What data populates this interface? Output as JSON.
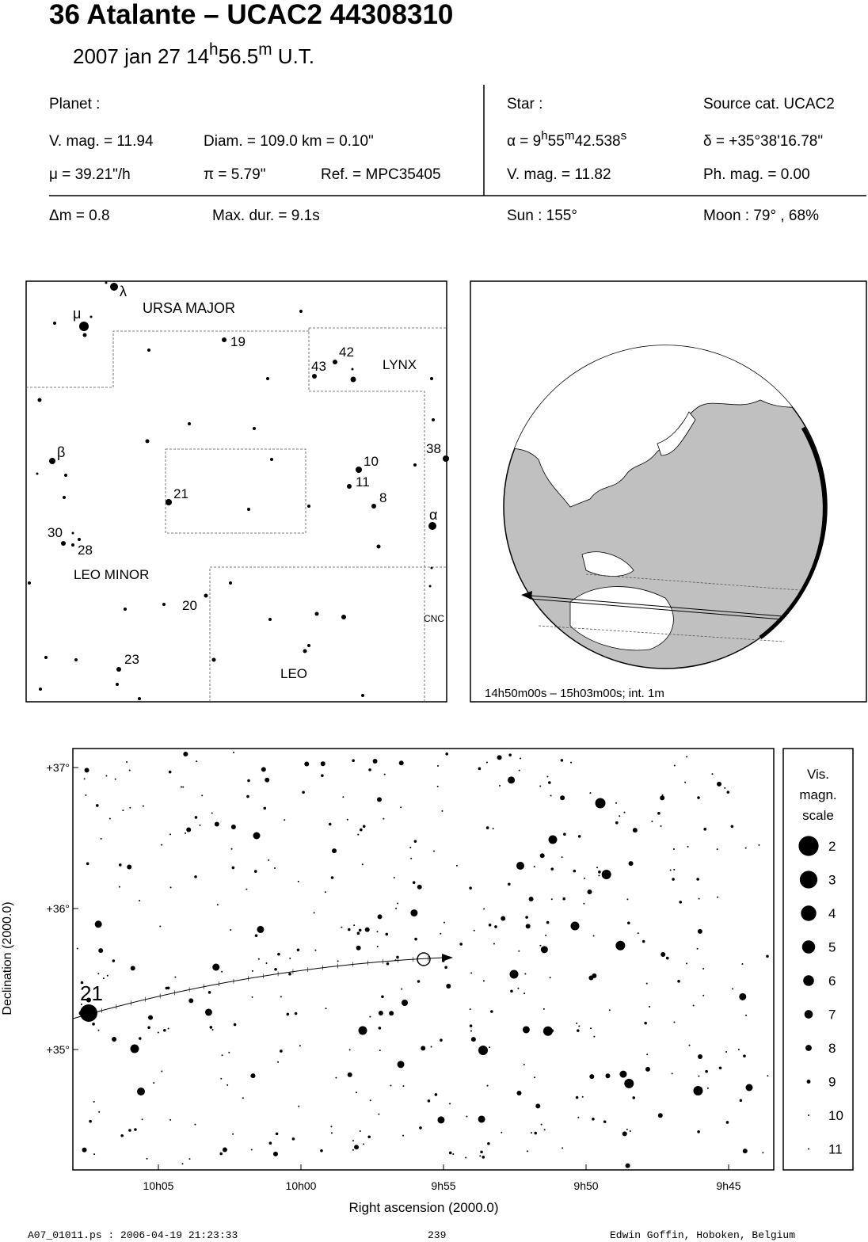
{
  "header": {
    "title": "36 Atalante  –  UCAC2 44308310",
    "subtitle": [
      {
        "t": "2007 jan 27  14"
      },
      {
        "t": "h",
        "sup": true
      },
      {
        "t": "56.5"
      },
      {
        "t": "m",
        "sup": true
      },
      {
        "t": " U.T."
      }
    ]
  },
  "planet": {
    "label": "Planet :",
    "vmag": "V. mag. = 11.94",
    "diam": "Diam. = 109.0 km = 0.10\"",
    "mu": "μ =  39.21\"/h",
    "pi": "π =  5.79\"",
    "ref": "Ref. = MPC35405"
  },
  "star": {
    "label": "Star :",
    "source": "Source cat.  UCAC2",
    "alpha": [
      {
        "t": "α =  9"
      },
      {
        "t": "h",
        "sup": true
      },
      {
        "t": "55"
      },
      {
        "t": "m",
        "sup": true
      },
      {
        "t": "42.538"
      },
      {
        "t": "s",
        "sup": true
      }
    ],
    "delta": "δ = +35°38'16.78\"",
    "vmag": "V. mag. = 11.82",
    "phmag": "Ph. mag. =  0.00"
  },
  "event": {
    "dm": "Δm = 0.8",
    "maxdur": "Max. dur. = 9.1s",
    "sun": "Sun : 155°",
    "moon": "Moon :  79° , 68%"
  },
  "finder": {
    "labels": [
      "λ",
      "μ",
      "URSA MAJOR",
      "19",
      "42",
      "43",
      "LYNX",
      "β",
      "38",
      "10",
      "11",
      "21",
      "8",
      "α",
      "30",
      "28",
      "LEO MINOR",
      "20",
      "CNC",
      "23",
      "LEO"
    ]
  },
  "globe": {
    "caption": "14h50m00s – 15h03m00s; int.  1m"
  },
  "starchart": {
    "ylabel": "Declination (2000.0)",
    "xlabel": "Right ascension (2000.0)",
    "yticks": [
      "+37°",
      "+36°",
      "+35°"
    ],
    "xticks": [
      "10h05",
      "10h00",
      "9h55",
      "9h50",
      "9h45"
    ],
    "star_label": "21"
  },
  "scale": {
    "title": [
      "Vis.",
      "magn.",
      "scale"
    ],
    "magnitudes": [
      2,
      3,
      4,
      5,
      6,
      7,
      8,
      9,
      10,
      11
    ]
  },
  "footer": {
    "file": "A07_01011.ps : 2006-04-19 21:23:33",
    "page": "239",
    "author": "Edwin Goffin, Hoboken, Belgium"
  }
}
